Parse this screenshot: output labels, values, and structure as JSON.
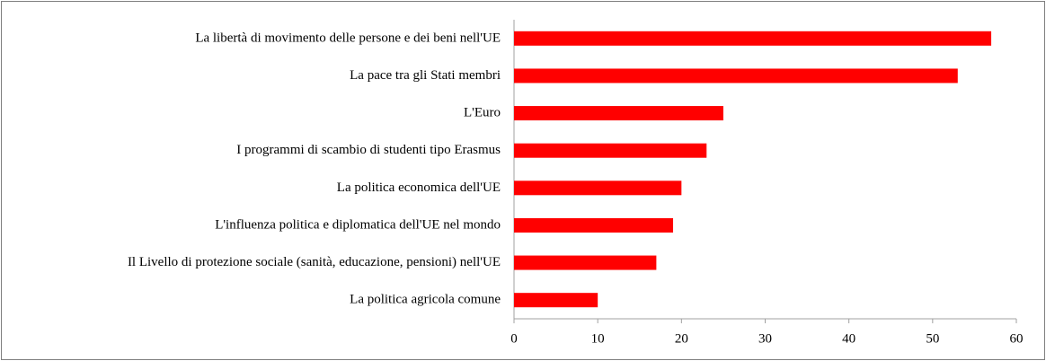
{
  "chart_data": {
    "type": "bar",
    "orientation": "horizontal",
    "categories": [
      "La libertà di movimento delle persone e dei beni nell'UE",
      "La pace tra gli Stati membri",
      "L'Euro",
      "I programmi di scambio di studenti tipo Erasmus",
      "La politica economica dell'UE",
      "L'influenza politica e diplomatica dell'UE nel mondo",
      "Il Livello di protezione sociale (sanità, educazione, pensioni) nell'UE",
      "La politica agricola comune"
    ],
    "values": [
      57,
      53,
      25,
      23,
      20,
      19,
      17,
      10
    ],
    "color": "#ff0000",
    "xlim": [
      0,
      60
    ],
    "xticks": [
      0,
      10,
      20,
      30,
      40,
      50,
      60
    ],
    "grid": false
  }
}
